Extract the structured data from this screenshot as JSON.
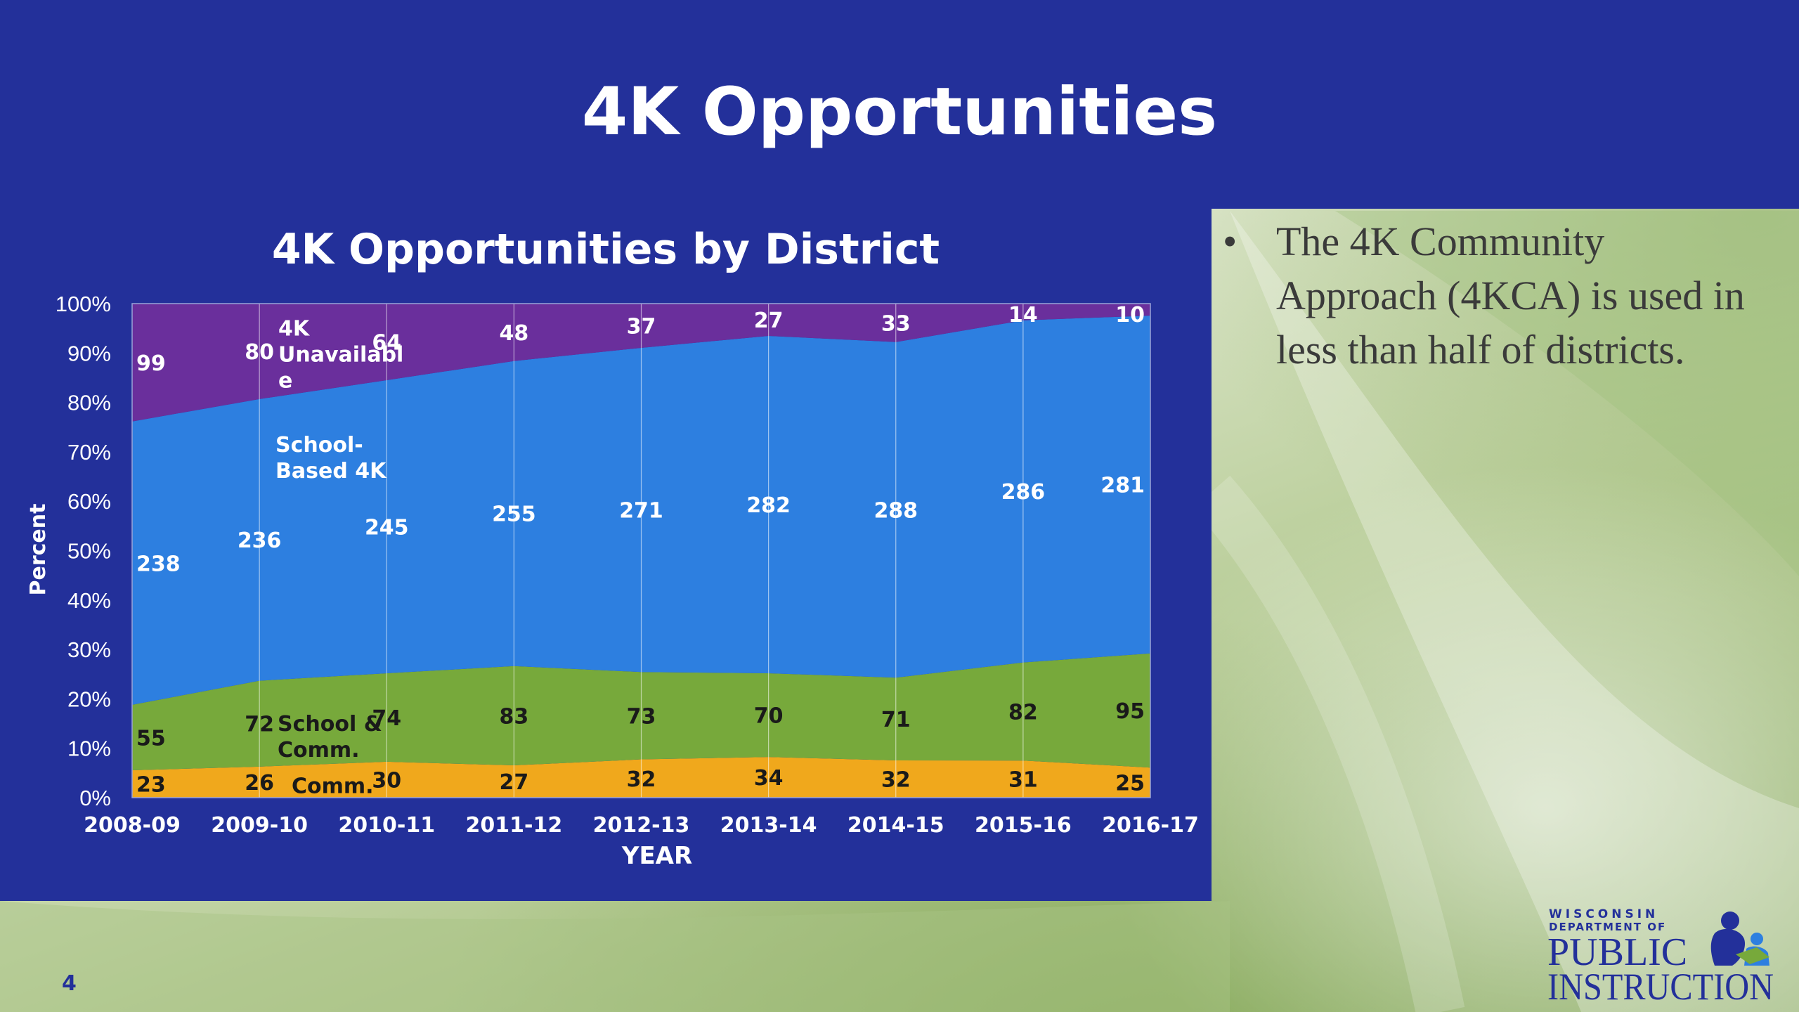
{
  "slide": {
    "title": "4K Opportunities",
    "bullet": "The 4K Community Approach (4KCA) is used in less than half of districts.",
    "bullet_marker": "•",
    "page_number": "4"
  },
  "logo": {
    "line1": "WISCONSIN",
    "line2": "DEPARTMENT OF",
    "line3": "PUBLIC",
    "line4": "INSTRUCTION",
    "icon": "parent-child-reading-icon"
  },
  "colors": {
    "header_bg": "#23309a",
    "community": "#f0a81c",
    "school_comm": "#77a93b",
    "school_based": "#2d7fe0",
    "unavailable": "#6a2f9c"
  },
  "chart_data": {
    "type": "area",
    "stacked": "100-percent",
    "title": "4K Opportunities by District",
    "xlabel": "YEAR",
    "ylabel": "Percent",
    "ylim": [
      0,
      100
    ],
    "y_ticks": [
      "0%",
      "10%",
      "20%",
      "30%",
      "40%",
      "50%",
      "60%",
      "70%",
      "80%",
      "90%",
      "100%"
    ],
    "categories": [
      "2008-09",
      "2009-10",
      "2010-11",
      "2011-12",
      "2012-13",
      "2013-14",
      "2014-15",
      "2015-16",
      "2016-17"
    ],
    "grid": "vertical",
    "series": [
      {
        "name": "Comm.",
        "color": "#f0a81c",
        "values": [
          23,
          26,
          30,
          27,
          32,
          34,
          32,
          31,
          25
        ]
      },
      {
        "name": "School & Comm.",
        "color": "#77a93b",
        "values": [
          55,
          72,
          74,
          83,
          73,
          70,
          71,
          82,
          95
        ]
      },
      {
        "name": "School-Based 4K",
        "color": "#2d7fe0",
        "values": [
          238,
          236,
          245,
          255,
          271,
          282,
          288,
          286,
          281
        ]
      },
      {
        "name": "4K Unavailable",
        "color": "#6a2f9c",
        "values": [
          99,
          80,
          64,
          48,
          37,
          27,
          33,
          14,
          10
        ]
      }
    ],
    "series_labels": [
      {
        "lines": [
          "Comm."
        ],
        "color": "#1a1a1a"
      },
      {
        "lines": [
          "School &",
          "Comm."
        ],
        "color": "#1a1a1a"
      },
      {
        "lines": [
          "School-",
          "Based 4K"
        ],
        "color": "#ffffff"
      },
      {
        "lines": [
          "4K",
          "Unavailabl",
          "e"
        ],
        "color": "#ffffff"
      }
    ]
  }
}
